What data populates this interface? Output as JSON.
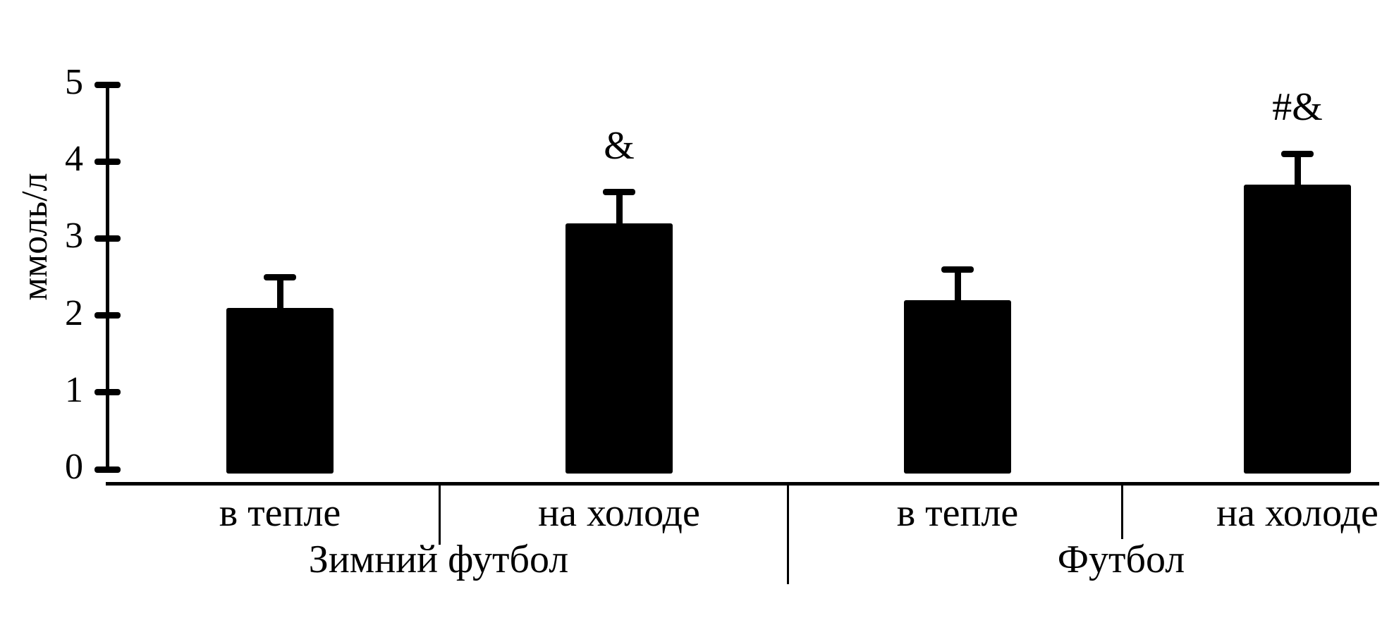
{
  "figure": {
    "background": "#ffffff",
    "text_color": "#000000"
  },
  "chart_data": {
    "type": "bar",
    "title": "",
    "xlabel": "",
    "ylabel": "ммоль/л",
    "ylim": [
      0,
      5
    ],
    "yticks": [
      0,
      1,
      2,
      3,
      4,
      5
    ],
    "grid": false,
    "legend": null,
    "bar_color": "#000000",
    "error_bars": "upper only, cap style",
    "groups": [
      {
        "label": "Зимний футбол",
        "bars": [
          {
            "category": "в тепле",
            "value": 2.1,
            "error_up": 0.4,
            "annotation": ""
          },
          {
            "category": "на холоде",
            "value": 3.2,
            "error_up": 0.4,
            "annotation": "&"
          }
        ]
      },
      {
        "label": "Футбол",
        "bars": [
          {
            "category": "в тепле",
            "value": 2.2,
            "error_up": 0.4,
            "annotation": ""
          },
          {
            "category": "на холоде",
            "value": 3.7,
            "error_up": 0.4,
            "annotation": "#&"
          }
        ]
      }
    ]
  }
}
